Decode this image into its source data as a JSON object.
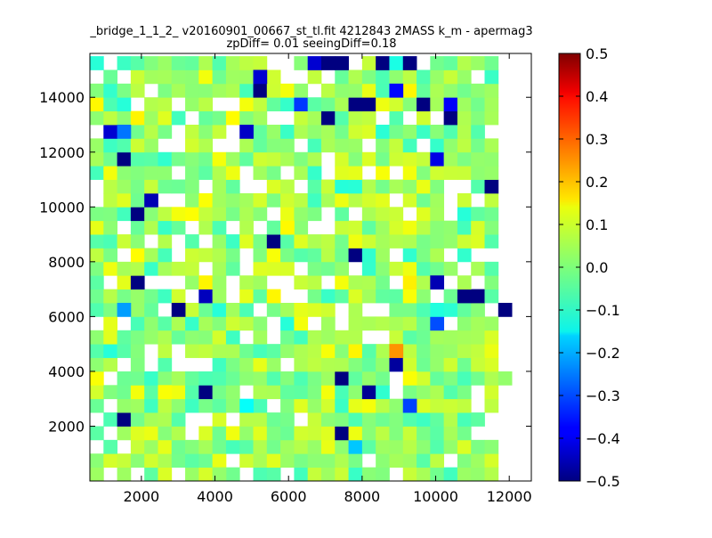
{
  "chart_data": {
    "type": "heatmap",
    "title_line1": "_bridge_1_1_2_ v20160901_00667_st_tl.fit 4212843 2MASS k_m - apermag3",
    "title_line2": "zpDiff= 0.01 seeingDiff=0.18",
    "xlabel": "",
    "ylabel": "",
    "xlim": [
      600,
      12600
    ],
    "ylim": [
      0,
      15600
    ],
    "xticks": [
      2000,
      4000,
      6000,
      8000,
      10000,
      12000
    ],
    "yticks": [
      2000,
      4000,
      6000,
      8000,
      10000,
      12000,
      14000
    ],
    "colorbar": {
      "colormap": "jet",
      "vmin": -0.5,
      "vmax": 0.5,
      "ticks": [
        0.5,
        0.4,
        0.3,
        0.2,
        0.1,
        0.0,
        -0.1,
        -0.2,
        -0.3,
        -0.4,
        -0.5
      ],
      "tick_labels": [
        "0.5",
        "0.4",
        "0.3",
        "0.2",
        "0.1",
        "0.0",
        "−0.1",
        "−0.2",
        "−0.3",
        "−0.4",
        "−0.5"
      ]
    },
    "grid_shape": [
      31,
      30
    ],
    "x0": 600,
    "y0": 0,
    "dx": 370,
    "dy": 500,
    "missing_fraction": 0.18,
    "random_seed": 20160901,
    "cells": [
      {
        "i": 0,
        "j": 9,
        "v": 0.02
      },
      {
        "i": 0,
        "j": 12,
        "v": -0.05
      },
      {
        "i": 0,
        "j": 13,
        "v": -0.04
      },
      {
        "i": 0,
        "j": 15,
        "v": -0.06
      },
      {
        "i": 0,
        "j": 17,
        "v": 0.03
      },
      {
        "i": 0,
        "j": 19,
        "v": -0.07
      },
      {
        "i": 0,
        "j": 24,
        "v": 0.04
      },
      {
        "i": 0,
        "j": 28,
        "v": 0.02
      },
      {
        "i": 0,
        "j": 29,
        "v": 0.05
      },
      {
        "i": 1,
        "j": 25,
        "v": 0.06
      },
      {
        "i": 1,
        "j": 28,
        "v": 0.03
      },
      {
        "i": 2,
        "j": 3,
        "v": 0.07
      },
      {
        "i": 2,
        "j": 5,
        "v": 0.1
      },
      {
        "i": 2,
        "j": 19,
        "v": -0.18
      },
      {
        "i": 2,
        "j": 27,
        "v": 0.09
      },
      {
        "i": 2,
        "j": 29,
        "v": 0.01
      },
      {
        "i": 3,
        "j": 14,
        "v": -0.02
      },
      {
        "i": 3,
        "j": 15,
        "v": 0.08
      },
      {
        "i": 4,
        "j": 19,
        "v": -0.05
      },
      {
        "i": 4,
        "j": 26,
        "v": 0.05
      },
      {
        "i": 4,
        "j": 13,
        "v": -0.02
      },
      {
        "i": 5,
        "j": 23,
        "v": -0.31
      },
      {
        "i": 5,
        "j": 11,
        "v": -0.12
      },
      {
        "i": 6,
        "j": 14,
        "v": -0.03
      },
      {
        "i": 6,
        "j": 5,
        "v": 0.12
      },
      {
        "i": 7,
        "j": 23,
        "v": 0.12
      },
      {
        "i": 7,
        "j": 30,
        "v": 0.02
      },
      {
        "i": 8,
        "j": 28,
        "v": 0.07
      },
      {
        "i": 9,
        "j": 20,
        "v": -0.04
      },
      {
        "i": 10,
        "j": 15,
        "v": -0.06
      },
      {
        "i": 10,
        "j": 28,
        "v": 0.04
      },
      {
        "i": 11,
        "j": 25,
        "v": -0.3
      },
      {
        "i": 11,
        "j": 22,
        "v": 0.04
      },
      {
        "i": 12,
        "j": 2,
        "v": -0.22
      },
      {
        "i": 12,
        "j": 24,
        "v": -0.05
      },
      {
        "i": 13,
        "j": 16,
        "v": -0.01
      }
    ],
    "dark_cells": [
      {
        "i": 3,
        "j": 18,
        "v": -0.5
      },
      {
        "i": 4,
        "j": 2,
        "v": -0.5
      },
      {
        "i": 6,
        "j": 8,
        "v": -0.5
      },
      {
        "i": 6,
        "j": 20,
        "v": -0.48
      },
      {
        "i": 8,
        "j": 22,
        "v": -0.47
      },
      {
        "i": 13,
        "j": 8,
        "v": -0.44
      },
      {
        "i": 12,
        "j": 30,
        "v": -0.5
      },
      {
        "i": 13,
        "j": 28,
        "v": -0.5
      },
      {
        "i": 13,
        "j": 27,
        "v": -0.5
      },
      {
        "i": 14,
        "j": 25,
        "v": -0.45
      },
      {
        "i": 12,
        "j": 6,
        "v": -0.5
      },
      {
        "i": 14,
        "j": 3,
        "v": -0.5
      },
      {
        "i": 7,
        "j": 18,
        "v": -0.5
      },
      {
        "i": 21,
        "j": 29,
        "v": -0.5
      },
      {
        "i": 16,
        "j": 19,
        "v": -0.5
      },
      {
        "i": 17,
        "j": 13,
        "v": -0.5
      },
      {
        "i": 19,
        "j": 3,
        "v": -0.5
      },
      {
        "i": 20,
        "j": 4,
        "v": -0.45
      },
      {
        "i": 23,
        "j": 2,
        "v": -0.5
      },
      {
        "i": 26,
        "j": 26,
        "v": -0.5
      },
      {
        "i": 26,
        "j": 17,
        "v": -0.5
      },
      {
        "i": 27,
        "j": 20,
        "v": -0.5
      },
      {
        "i": 27,
        "j": 19,
        "v": -0.5
      },
      {
        "i": 27,
        "j": 24,
        "v": -0.5
      },
      {
        "i": 25,
        "j": 1,
        "v": -0.42
      },
      {
        "i": 23,
        "j": 25,
        "v": -0.4
      },
      {
        "i": 25,
        "j": 11,
        "v": -0.43
      },
      {
        "i": 27,
        "j": 26,
        "v": -0.38
      },
      {
        "i": 27,
        "j": 15,
        "v": -0.32
      },
      {
        "i": 28,
        "j": 12,
        "v": -0.5
      },
      {
        "i": 29,
        "j": 12,
        "v": -0.42
      },
      {
        "i": 28,
        "j": 22,
        "v": -0.37
      },
      {
        "i": 30,
        "j": 17,
        "v": -0.5
      },
      {
        "i": 30,
        "j": 23,
        "v": -0.5
      },
      {
        "i": 30,
        "j": 21,
        "v": -0.5
      },
      {
        "i": 30,
        "j": 18,
        "v": -0.5
      },
      {
        "i": 30,
        "j": 16,
        "v": -0.42
      },
      {
        "i": 30,
        "j": 22,
        "v": -0.1
      }
    ],
    "special_cells": [
      {
        "i": 9,
        "j": 22,
        "v": 0.23
      },
      {
        "i": 14,
        "j": 23,
        "v": 0.14
      },
      {
        "i": 18,
        "j": 14,
        "v": 0.13
      },
      {
        "i": 25,
        "j": 2,
        "v": -0.26
      }
    ]
  }
}
